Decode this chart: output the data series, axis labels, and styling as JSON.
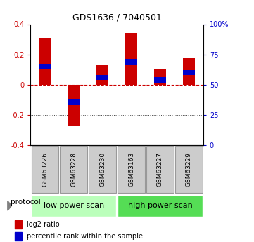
{
  "title": "GDS1636 / 7040501",
  "samples": [
    "GSM63226",
    "GSM63228",
    "GSM63230",
    "GSM63163",
    "GSM63227",
    "GSM63229"
  ],
  "log2_ratio": [
    0.31,
    -0.27,
    0.13,
    0.34,
    0.1,
    0.18
  ],
  "percentile_rank_pct": [
    65,
    36,
    56,
    69,
    54,
    60
  ],
  "ylim": [
    -0.4,
    0.4
  ],
  "yticks_left": [
    -0.4,
    -0.2,
    0.0,
    0.2,
    0.4
  ],
  "ytick_labels_left": [
    "-0.4",
    "-0.2",
    "0",
    "0.2",
    "0.4"
  ],
  "right_yticks_pct": [
    0,
    25,
    50,
    75,
    100
  ],
  "bar_color": "#cc0000",
  "pct_color": "#0000cc",
  "zero_line_color": "#cc0000",
  "grid_color": "#444444",
  "protocols": [
    "low power scan",
    "high power scan"
  ],
  "protocol_colors": [
    "#bbffbb",
    "#55dd55"
  ],
  "sample_box_color": "#cccccc",
  "sample_box_edge": "#999999",
  "legend_bar": "log2 ratio",
  "legend_pct": "percentile rank within the sample",
  "bar_width": 0.4
}
